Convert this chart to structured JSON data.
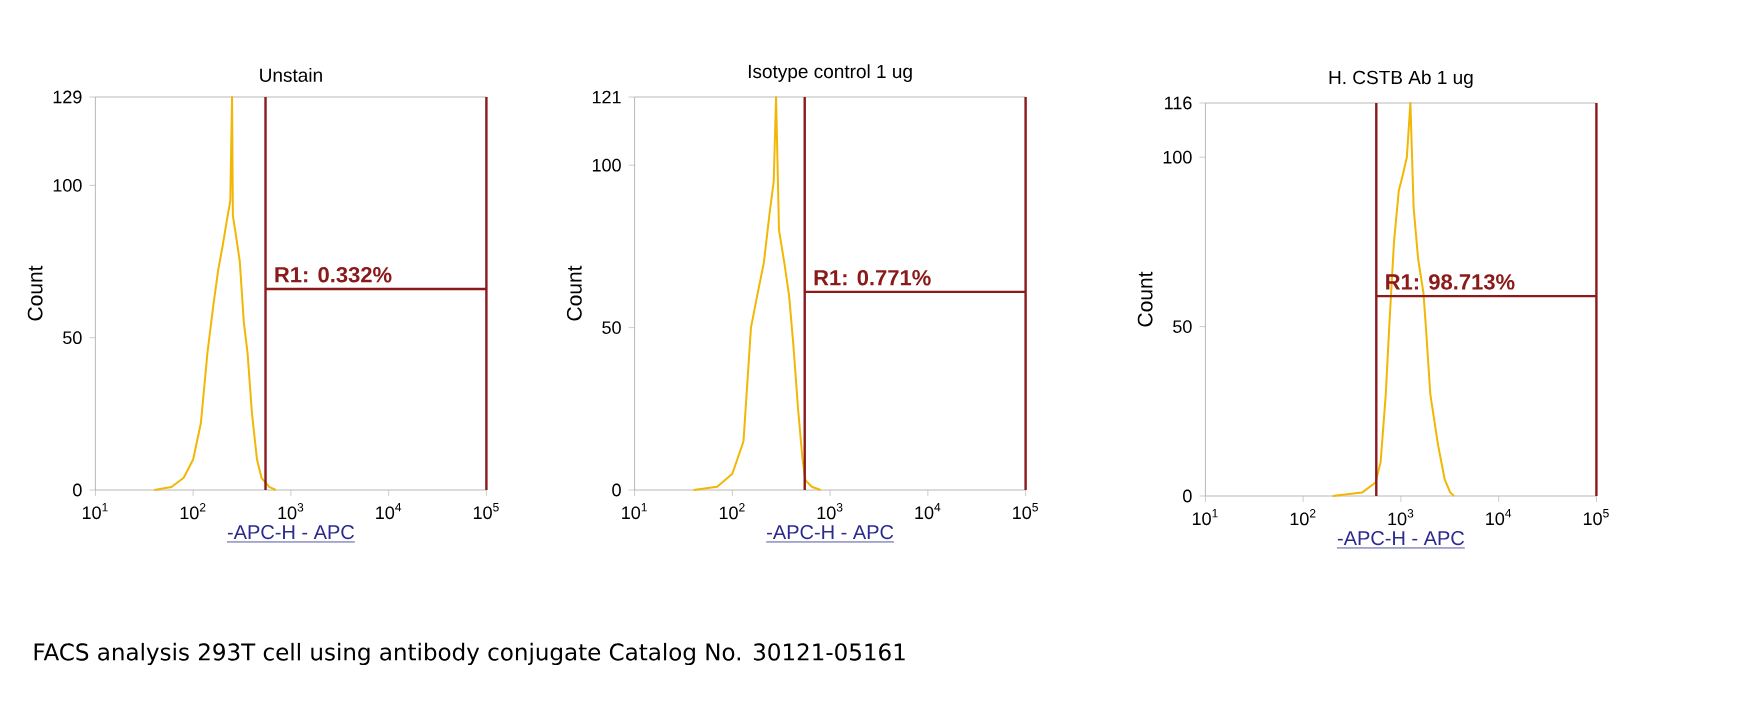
{
  "chart_data": [
    {
      "type": "line",
      "title": "Unstain",
      "xlabel": "-APC-H - APC",
      "ylabel": "Count",
      "log": "x",
      "xlim": [
        10,
        100000
      ],
      "ylim": [
        0,
        129
      ],
      "xticks": [
        {
          "value": 10,
          "label": "10$^{1}$"
        },
        {
          "value": 100,
          "label": "10$^{2}$"
        },
        {
          "value": 1000,
          "label": "10$^{3}$"
        },
        {
          "value": 10000,
          "label": "10$^{4}$"
        },
        {
          "value": 100000,
          "label": "10$^{5}$"
        }
      ],
      "yticks": [
        0,
        50,
        100,
        129
      ],
      "series": [
        {
          "color": "#f2b705",
          "x": [
            40,
            60,
            80,
            100,
            120,
            140,
            160,
            180,
            200,
            220,
            240,
            250,
            255,
            270,
            300,
            330,
            360,
            400,
            450,
            500,
            600,
            700
          ],
          "values": [
            0,
            1,
            4,
            10,
            22,
            45,
            60,
            72,
            80,
            88,
            95,
            129,
            90,
            85,
            75,
            55,
            45,
            25,
            10,
            4,
            1,
            0
          ]
        }
      ],
      "ref_lines": [
        {
          "axis": "x",
          "value": 550,
          "color": "#8b1a1a"
        },
        {
          "axis": "x",
          "value": 100000,
          "color": "#8b1a1a"
        },
        {
          "axis": "y",
          "value": 66,
          "color": "#8b1a1a"
        }
      ],
      "annotations": [
        "R1: 0.332%",
        "FACS analysis 293T cell using antibody conjugate Catalog No. 30121-05161"
      ]
    },
    {
      "type": "line",
      "title": "Isotype control 1 ug",
      "xlabel": "-APC-H - APC",
      "ylabel": "Count",
      "log": "x",
      "xlim": [
        10,
        100000
      ],
      "ylim": [
        0,
        121
      ],
      "xticks": [
        {
          "value": 10,
          "label": "10$^{1}$"
        },
        {
          "value": 100,
          "label": "10$^{2}$"
        },
        {
          "value": 1000,
          "label": "10$^{3}$"
        },
        {
          "value": 10000,
          "label": "10$^{4}$"
        },
        {
          "value": 100000,
          "label": "10$^{5}$"
        }
      ],
      "yticks": [
        0,
        50,
        100,
        121
      ],
      "series": [
        {
          "color": "#f2b705",
          "x": [
            40,
            70,
            100,
            130,
            155,
            180,
            210,
            240,
            265,
            280,
            300,
            340,
            380,
            420,
            470,
            520,
            560,
            650,
            800
          ],
          "values": [
            0,
            1,
            5,
            15,
            50,
            60,
            70,
            85,
            95,
            121,
            80,
            70,
            60,
            45,
            25,
            10,
            3,
            1,
            0
          ]
        }
      ],
      "ref_lines": [
        {
          "axis": "x",
          "value": 550,
          "color": "#8b1a1a"
        },
        {
          "axis": "x",
          "value": 100000,
          "color": "#8b1a1a"
        },
        {
          "axis": "y",
          "value": 61,
          "color": "#8b1a1a"
        }
      ],
      "annotations": [
        "R1: 0.771%"
      ]
    },
    {
      "type": "line",
      "title": "H. CSTB Ab 1 ug",
      "xlabel": "-APC-H - APC",
      "ylabel": "Count",
      "log": "x",
      "xlim": [
        10,
        100000
      ],
      "ylim": [
        0,
        116
      ],
      "xticks": [
        {
          "value": 10,
          "label": "10$^{1}$"
        },
        {
          "value": 100,
          "label": "10$^{2}$"
        },
        {
          "value": 1000,
          "label": "10$^{3}$"
        },
        {
          "value": 10000,
          "label": "10$^{4}$"
        },
        {
          "value": 100000,
          "label": "10$^{5}$"
        }
      ],
      "yticks": [
        0,
        50,
        100,
        116
      ],
      "series": [
        {
          "color": "#f2b705",
          "x": [
            200,
            400,
            550,
            620,
            700,
            760,
            850,
            950,
            1050,
            1150,
            1250,
            1350,
            1500,
            1700,
            1800,
            2000,
            2400,
            2800,
            3200,
            3500
          ],
          "values": [
            0,
            1,
            4,
            10,
            30,
            50,
            75,
            90,
            95,
            100,
            116,
            85,
            70,
            60,
            50,
            30,
            15,
            5,
            1,
            0
          ]
        }
      ],
      "ref_lines": [
        {
          "axis": "x",
          "value": 560,
          "color": "#8b1a1a"
        },
        {
          "axis": "x",
          "value": 100000,
          "color": "#8b1a1a"
        },
        {
          "axis": "y",
          "value": 59,
          "color": "#8b1a1a"
        }
      ],
      "annotations": [
        "R1: 98.713%"
      ]
    }
  ]
}
